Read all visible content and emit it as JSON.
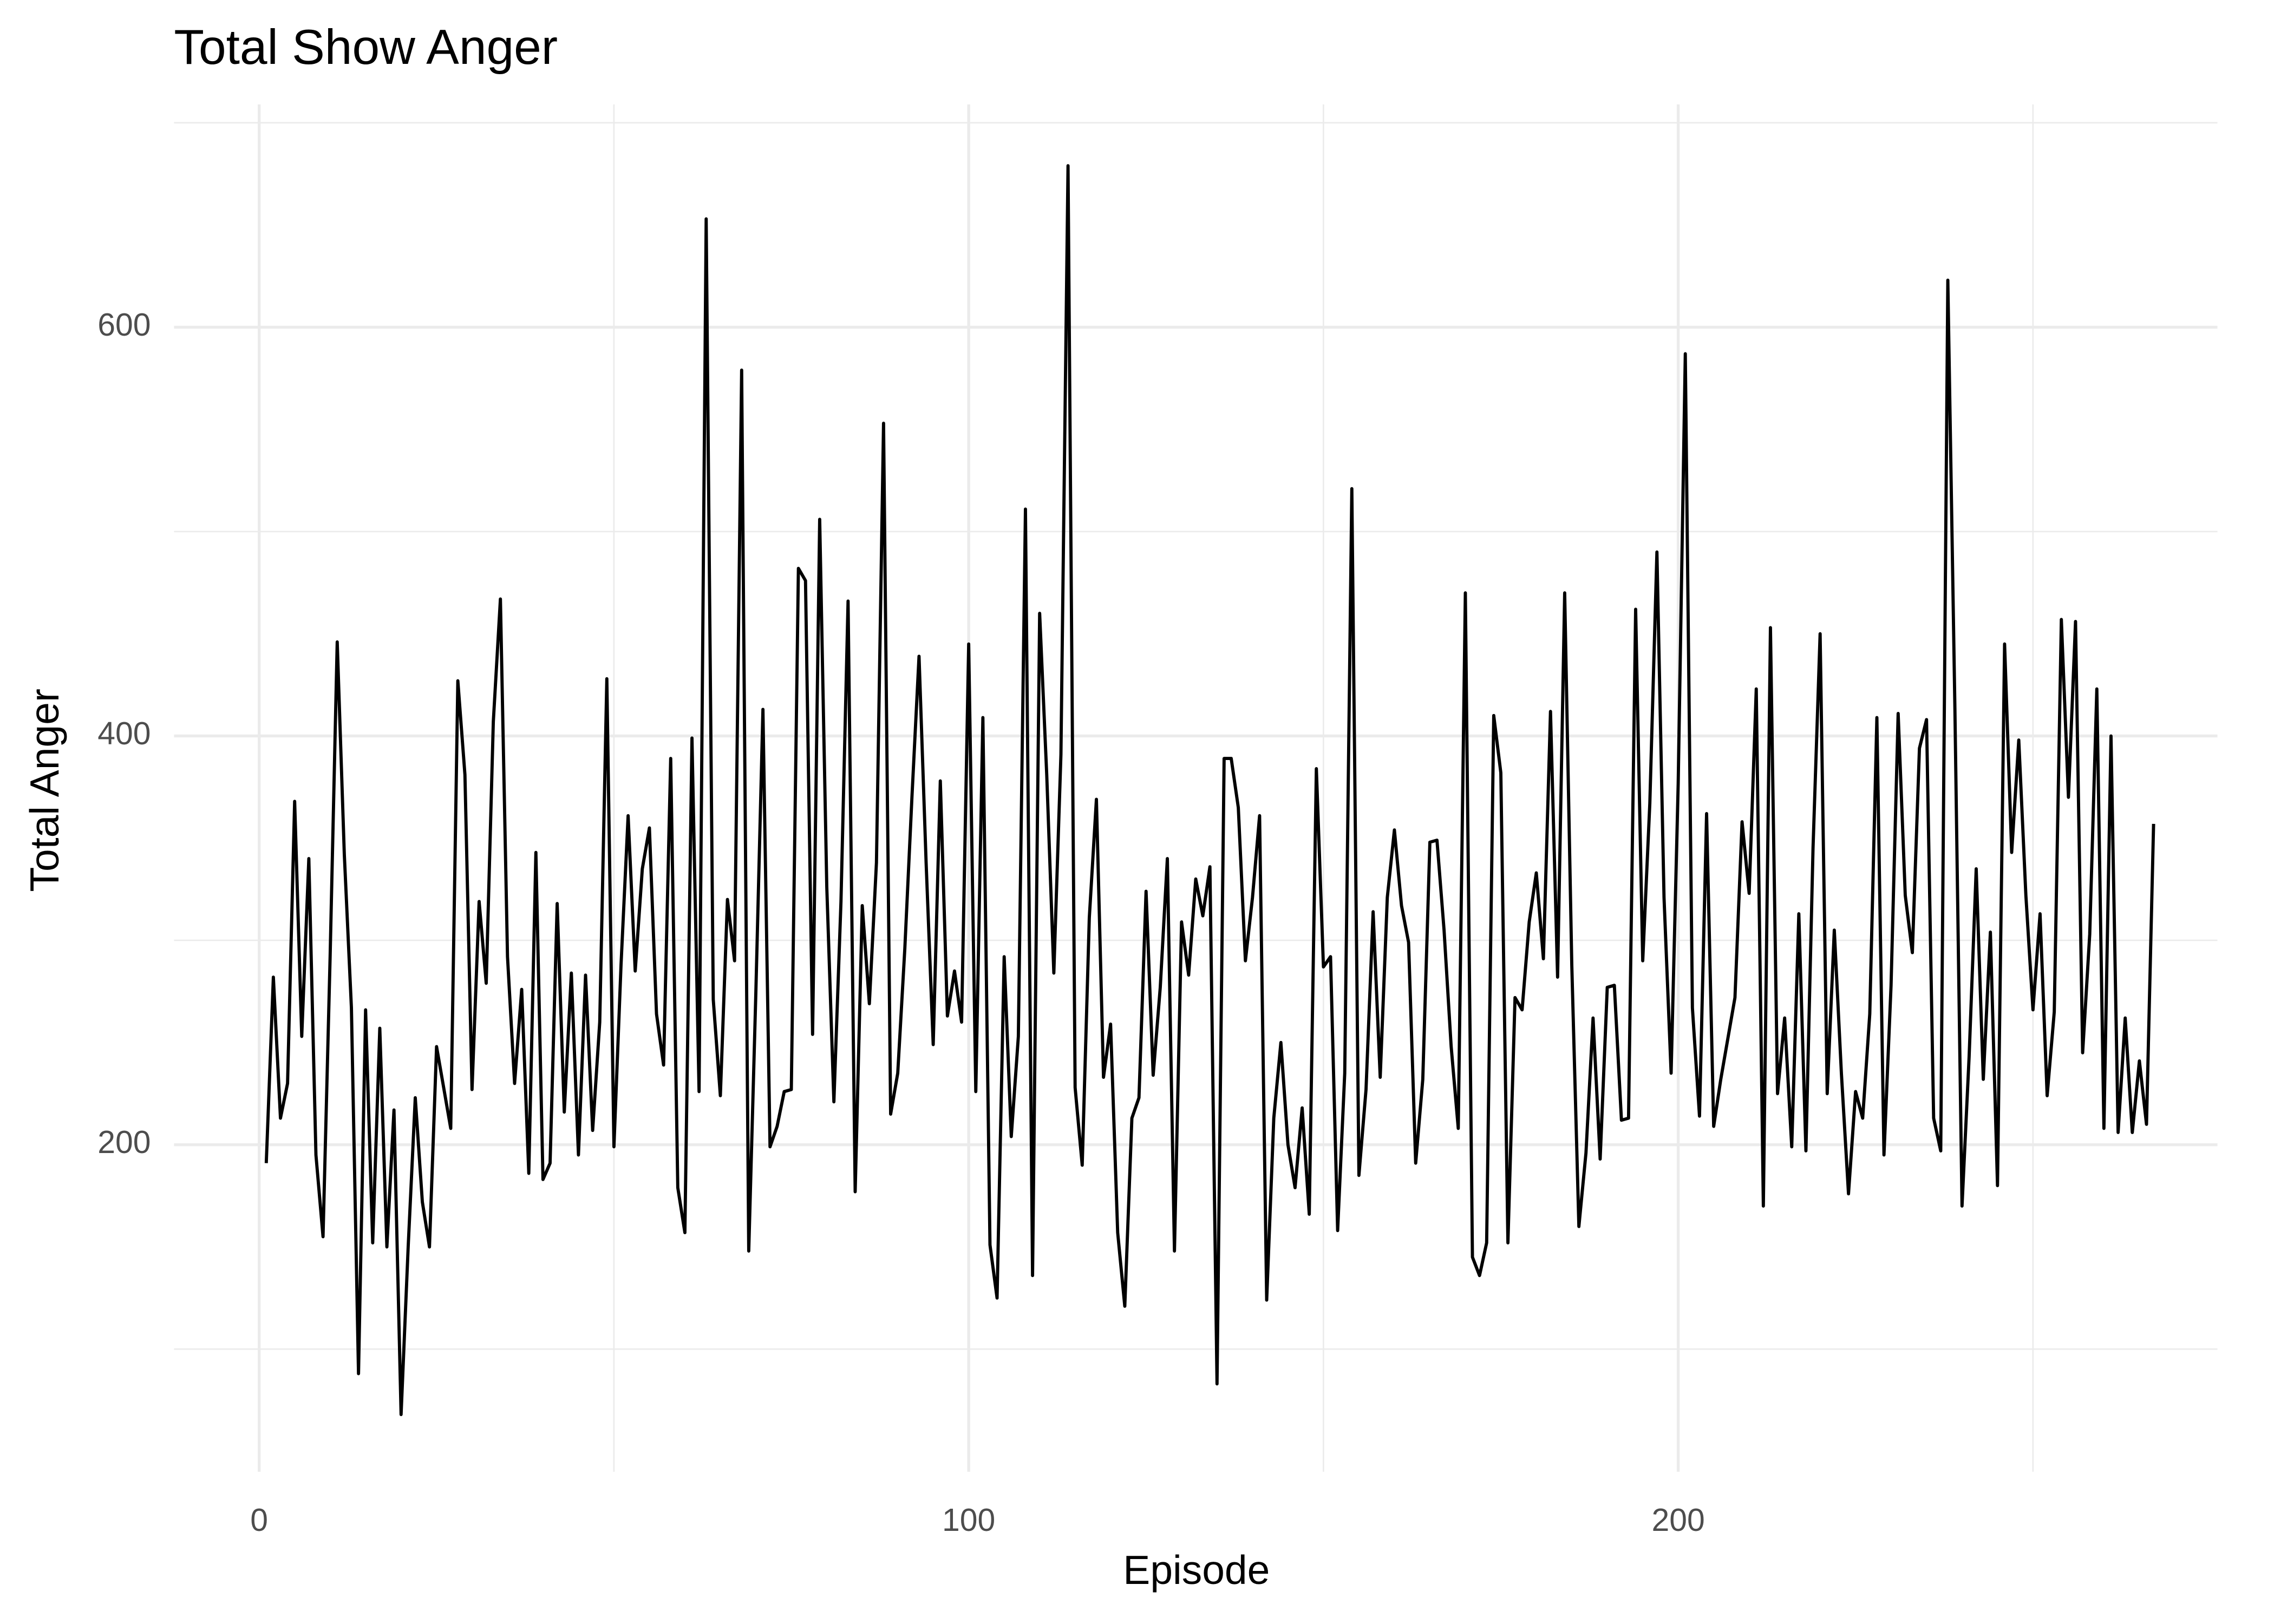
{
  "chart_data": {
    "type": "line",
    "title": "Total Show Anger",
    "x_label": "Episode",
    "y_label": "Total Anger",
    "color": "#000000",
    "x": [
      1,
      2,
      3,
      4,
      5,
      6,
      7,
      8,
      9,
      10,
      11,
      12,
      13,
      14,
      15,
      16,
      17,
      18,
      19,
      20,
      21,
      22,
      23,
      24,
      25,
      26,
      27,
      28,
      29,
      30,
      31,
      32,
      33,
      34,
      35,
      36,
      37,
      38,
      39,
      40,
      41,
      42,
      43,
      44,
      45,
      46,
      47,
      48,
      49,
      50,
      51,
      52,
      53,
      54,
      55,
      56,
      57,
      58,
      59,
      60,
      61,
      62,
      63,
      64,
      65,
      66,
      67,
      68,
      69,
      70,
      71,
      72,
      73,
      74,
      75,
      76,
      77,
      78,
      79,
      80,
      81,
      82,
      83,
      84,
      85,
      86,
      87,
      88,
      89,
      90,
      91,
      92,
      93,
      94,
      95,
      96,
      97,
      98,
      99,
      100,
      101,
      102,
      103,
      104,
      105,
      106,
      107,
      108,
      109,
      110,
      111,
      112,
      113,
      114,
      115,
      116,
      117,
      118,
      119,
      120,
      121,
      122,
      123,
      124,
      125,
      126,
      127,
      128,
      129,
      130,
      131,
      132,
      133,
      134,
      135,
      136,
      137,
      138,
      139,
      140,
      141,
      142,
      143,
      144,
      145,
      146,
      147,
      148,
      149,
      150,
      151,
      152,
      153,
      154,
      155,
      156,
      157,
      158,
      159,
      160,
      161,
      162,
      163,
      164,
      165,
      166,
      167,
      168,
      169,
      170,
      171,
      172,
      173,
      174,
      175,
      176,
      177,
      178,
      179,
      180,
      181,
      182,
      183,
      184,
      185,
      186,
      187,
      188,
      189,
      190,
      191,
      192,
      193,
      194,
      195,
      196,
      197,
      198,
      199,
      200,
      201,
      202,
      203,
      204,
      205,
      206,
      207,
      208,
      209,
      210,
      211,
      212,
      213,
      214,
      215,
      216,
      217,
      218,
      219,
      220,
      221,
      222,
      223,
      224,
      225,
      226,
      227,
      228,
      229,
      230,
      231,
      232,
      233,
      234,
      235,
      236,
      237,
      238,
      239,
      240,
      241,
      242,
      243,
      244,
      245,
      246,
      247,
      248,
      249,
      250,
      251,
      252,
      253,
      254,
      255,
      256,
      257,
      258,
      259,
      260,
      261,
      262,
      263,
      264,
      265,
      266,
      267
    ],
    "values": [
      191,
      282,
      213,
      230,
      368,
      253,
      340,
      195,
      155,
      292,
      446,
      342,
      267,
      88,
      266,
      152,
      257,
      150,
      217,
      68,
      150,
      223,
      172,
      150,
      248,
      228,
      208,
      427,
      381,
      227,
      319,
      279,
      407,
      467,
      292,
      230,
      276,
      186,
      343,
      183,
      191,
      318,
      216,
      284,
      195,
      283,
      207,
      260,
      428,
      199,
      288,
      361,
      285,
      335,
      355,
      264,
      239,
      389,
      179,
      157,
      399,
      226,
      653,
      271,
      224,
      320,
      290,
      579,
      148,
      274,
      413,
      199,
      209,
      226,
      227,
      482,
      476,
      254,
      506,
      326,
      221,
      319,
      466,
      177,
      317,
      269,
      338,
      553,
      215,
      235,
      296,
      370,
      439,
      338,
      249,
      378,
      263,
      285,
      260,
      445,
      226,
      409,
      151,
      125,
      292,
      204,
      253,
      511,
      136,
      460,
      381,
      284,
      391,
      679,
      228,
      190,
      311,
      369,
      233,
      259,
      157,
      121,
      213,
      223,
      324,
      234,
      277,
      340,
      148,
      309,
      283,
      330,
      312,
      336,
      83,
      389,
      389,
      365,
      290,
      321,
      361,
      124,
      213,
      250,
      200,
      179,
      218,
      166,
      384,
      287,
      292,
      158,
      235,
      521,
      185,
      227,
      314,
      233,
      321,
      354,
      317,
      299,
      191,
      232,
      348,
      349,
      305,
      248,
      208,
      470,
      145,
      136,
      152,
      410,
      382,
      152,
      272,
      266,
      309,
      333,
      291,
      412,
      282,
      470,
      288,
      160,
      196,
      262,
      193,
      277,
      278,
      212,
      213,
      462,
      290,
      367,
      490,
      321,
      235,
      377,
      587,
      267,
      214,
      362,
      209,
      232,
      252,
      272,
      358,
      323,
      423,
      170,
      453,
      225,
      262,
      199,
      313,
      197,
      345,
      450,
      225,
      305,
      235,
      176,
      226,
      213,
      264,
      409,
      195,
      278,
      411,
      322,
      294,
      394,
      408,
      213,
      197,
      623,
      413,
      170,
      243,
      335,
      232,
      304,
      180,
      445,
      343,
      398,
      322,
      266,
      313,
      224,
      265,
      457,
      370,
      456,
      245,
      303,
      423,
      208,
      400,
      206,
      262,
      206,
      241,
      210,
      357
    ],
    "xlim": [
      -12,
      276
    ],
    "ylim": [
      40,
      709
    ],
    "xticks": [
      0,
      100,
      200
    ],
    "yticks": [
      200,
      400,
      600
    ],
    "x_minor_ticks": [
      50,
      150,
      250
    ],
    "y_minor_ticks": [
      100,
      300,
      500,
      700
    ],
    "grid": true
  }
}
